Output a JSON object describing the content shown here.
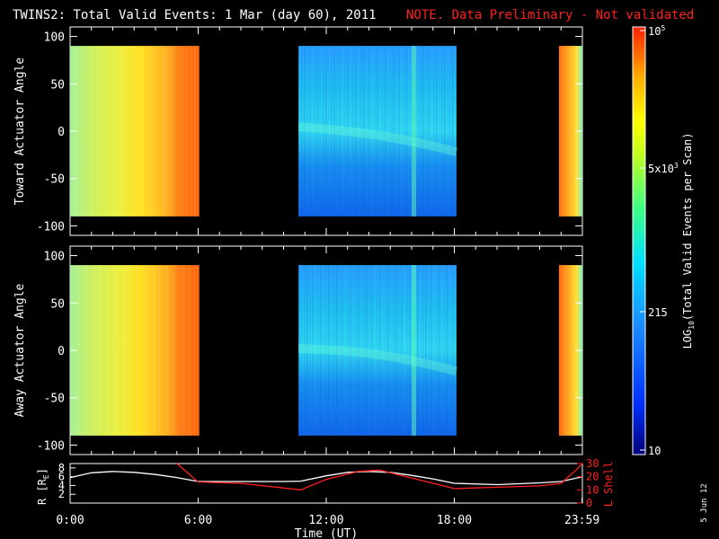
{
  "header": {
    "title": "TWINS2: Total Valid Events:  1 Mar (day  60), 2011",
    "note": "NOTE. Data Preliminary - Not validated",
    "note_color": "#ff2020"
  },
  "footer": {
    "datestamp": "5 Jun 12"
  },
  "chart_data": [
    {
      "type": "heatmap",
      "ylabel": "Toward Actuator Angle",
      "ylim": [
        -110,
        110
      ],
      "yticks": [
        "100",
        "50",
        "0",
        "-50",
        "-100"
      ],
      "xlim_hours": [
        0,
        24
      ],
      "data_y_range": [
        -90,
        90
      ],
      "data_blocks": [
        {
          "start_hour": 0.0,
          "end_hour": 6.05,
          "level": "high"
        },
        {
          "start_hour": 10.7,
          "end_hour": 18.1,
          "level": "low"
        },
        {
          "start_hour": 22.9,
          "end_hour": 24.0,
          "level": "high"
        }
      ]
    },
    {
      "type": "heatmap",
      "ylabel": "Away Actuator Angle",
      "ylim": [
        -110,
        110
      ],
      "yticks": [
        "100",
        "50",
        "0",
        "-50",
        "-100"
      ],
      "xlim_hours": [
        0,
        24
      ],
      "data_y_range": [
        -90,
        90
      ],
      "data_blocks": [
        {
          "start_hour": 0.0,
          "end_hour": 6.05,
          "level": "high"
        },
        {
          "start_hour": 10.7,
          "end_hour": 18.1,
          "level": "low"
        },
        {
          "start_hour": 22.9,
          "end_hour": 24.0,
          "level": "high"
        }
      ]
    },
    {
      "type": "line",
      "ylabel": "R [R",
      "ylabel_sub": "E",
      "ylabel_close": "]",
      "y2label": "L Shell",
      "ylim": [
        0,
        9
      ],
      "y2lim": [
        0,
        30
      ],
      "yticks": [
        "8",
        "6",
        "4",
        "2"
      ],
      "y2ticks": [
        "30",
        "20",
        "10",
        "0"
      ],
      "x_hours": [
        0,
        1,
        2,
        3,
        4,
        5,
        6,
        8,
        10,
        10.8,
        12,
        13,
        14,
        15,
        16,
        17,
        18,
        20,
        22,
        23,
        24
      ],
      "series": [
        {
          "color": "#ffffff",
          "values": [
            5.8,
            6.9,
            7.2,
            7.0,
            6.5,
            5.8,
            4.9,
            4.9,
            4.9,
            5.0,
            6.2,
            7.0,
            7.2,
            7.0,
            6.3,
            5.5,
            4.5,
            4.2,
            4.6,
            4.9,
            6.0
          ]
        },
        {
          "color": "#ff2020",
          "axis": "right",
          "x_hours": [
            5.0,
            6.0,
            8.0,
            10.8,
            12.0,
            13.5,
            14.5,
            16.0,
            17.5,
            18.0,
            20.0,
            22.0,
            23.0,
            23.7,
            24.0
          ],
          "values": [
            31,
            16,
            15,
            10,
            18,
            24,
            25,
            19,
            13,
            11,
            12,
            13,
            15,
            25,
            33
          ]
        }
      ],
      "xticks": [
        "0:00",
        "6:00",
        "12:00",
        "18:00",
        "23:59"
      ],
      "xlabel": "Time (UT)"
    }
  ],
  "colorbar": {
    "label": "LOG",
    "label_sub": "10",
    "label_rest": "(Total Valid Events per Scan)",
    "ticks": [
      "10",
      "215",
      "5x10",
      "10"
    ],
    "tick_exps": [
      "",
      "",
      "3",
      "5"
    ]
  }
}
